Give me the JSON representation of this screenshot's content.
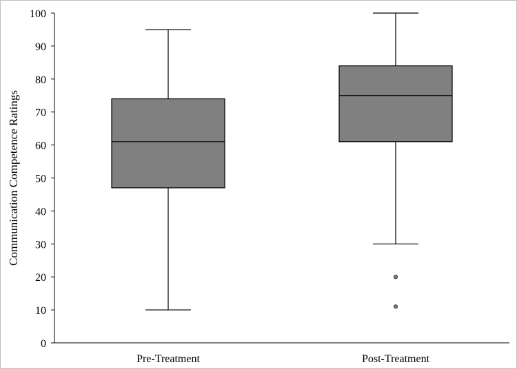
{
  "chart_data": {
    "type": "boxplot",
    "title": "",
    "xlabel": "",
    "ylabel": "Communication Competence Ratings",
    "ylim": [
      0,
      100
    ],
    "yticks": [
      0,
      10,
      20,
      30,
      40,
      50,
      60,
      70,
      80,
      90,
      100
    ],
    "grid": false,
    "categories": [
      "Pre-Treatment",
      "Post-Treatment"
    ],
    "boxes": [
      {
        "category": "Pre-Treatment",
        "whisker_low": 10,
        "q1": 47,
        "median": 61,
        "q3": 74,
        "whisker_high": 95,
        "outliers": []
      },
      {
        "category": "Post-Treatment",
        "whisker_low": 30,
        "q1": 61,
        "median": 75,
        "q3": 84,
        "whisker_high": 100,
        "outliers": [
          20,
          11
        ]
      }
    ],
    "colors": {
      "box_fill": "#808080",
      "stroke": "#000000",
      "outlier_fill": "#808080"
    }
  }
}
